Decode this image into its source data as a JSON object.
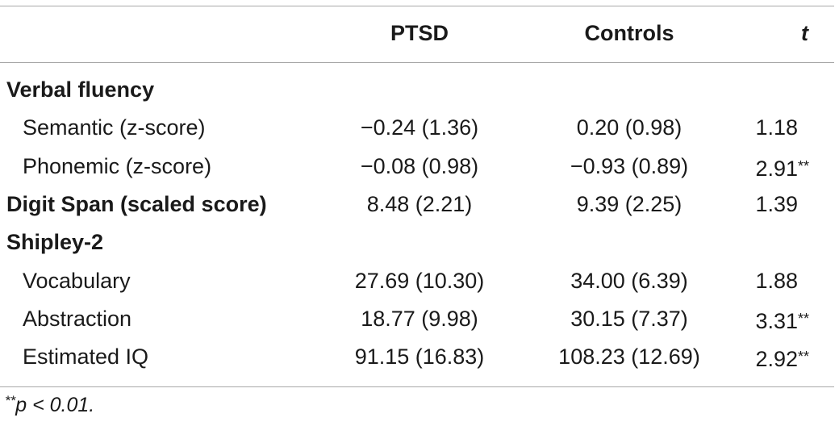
{
  "table": {
    "headers": {
      "label": "",
      "ptsd": "PTSD",
      "controls": "Controls",
      "t": "t"
    },
    "rows": [
      {
        "type": "section",
        "label": "Verbal fluency",
        "ptsd": "",
        "controls": "",
        "t": "",
        "sig": ""
      },
      {
        "type": "item",
        "label": "Semantic (z-score)",
        "ptsd": "−0.24 (1.36)",
        "controls": "0.20 (0.98)",
        "t": "1.18",
        "sig": ""
      },
      {
        "type": "item",
        "label": "Phonemic (z-score)",
        "ptsd": "−0.08 (0.98)",
        "controls": "−0.93 (0.89)",
        "t": "2.91",
        "sig": "**"
      },
      {
        "type": "section-with-values",
        "label": "Digit Span (scaled score)",
        "ptsd": "8.48 (2.21)",
        "controls": "9.39 (2.25)",
        "t": "1.39",
        "sig": ""
      },
      {
        "type": "section",
        "label": "Shipley-2",
        "ptsd": "",
        "controls": "",
        "t": "",
        "sig": ""
      },
      {
        "type": "item",
        "label": "Vocabulary",
        "ptsd": "27.69 (10.30)",
        "controls": "34.00 (6.39)",
        "t": "1.88",
        "sig": ""
      },
      {
        "type": "item",
        "label": "Abstraction",
        "ptsd": "18.77 (9.98)",
        "controls": "30.15 (7.37)",
        "t": "3.31",
        "sig": "**"
      },
      {
        "type": "item",
        "label": "Estimated IQ",
        "ptsd": "91.15 (16.83)",
        "controls": "108.23 (12.69)",
        "t": "2.92",
        "sig": "**"
      }
    ],
    "footnote": {
      "mark": "**",
      "text": "p < 0.01."
    }
  }
}
